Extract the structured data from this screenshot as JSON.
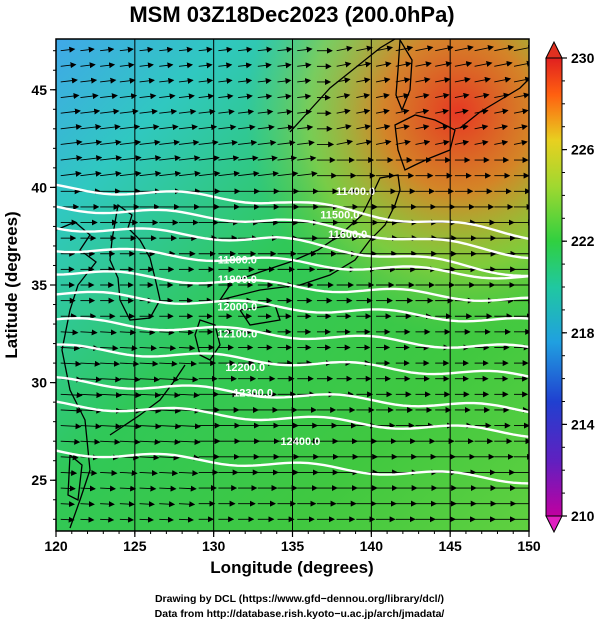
{
  "title": "MSM 03Z18Dec2023 (200.0hPa)",
  "x_axis": {
    "label": "Longitude (degrees)",
    "range": [
      120,
      150
    ],
    "ticks": [
      "120",
      "125",
      "130",
      "135",
      "140",
      "145",
      "150"
    ]
  },
  "y_axis": {
    "label": "Latitude  (degrees)",
    "range": [
      22.4,
      47.6
    ],
    "ticks": [
      "25",
      "30",
      "35",
      "40",
      "45"
    ]
  },
  "colorbar": {
    "range": [
      210,
      230
    ],
    "ticks": [
      "210",
      "214",
      "218",
      "222",
      "226",
      "230"
    ],
    "colors": [
      "#c000a0",
      "#2030c0",
      "#20a0e0",
      "#20c8a0",
      "#30d040",
      "#a0d830",
      "#e8d020",
      "#ff6010",
      "#e02020"
    ]
  },
  "contour_labels": [
    {
      "text": "11400.0",
      "lon": 139.0,
      "lat": 39.6
    },
    {
      "text": "11500.0",
      "lon": 138.0,
      "lat": 38.4
    },
    {
      "text": "11600.0",
      "lon": 138.5,
      "lat": 37.4
    },
    {
      "text": "11800.0",
      "lon": 131.5,
      "lat": 36.1
    },
    {
      "text": "11900.0",
      "lon": 131.5,
      "lat": 35.1
    },
    {
      "text": "12000.0",
      "lon": 131.5,
      "lat": 33.7
    },
    {
      "text": "12100.0",
      "lon": 131.5,
      "lat": 32.3
    },
    {
      "text": "12200.0",
      "lon": 132.0,
      "lat": 30.6
    },
    {
      "text": "12300.0",
      "lon": 132.5,
      "lat": 29.3
    },
    {
      "text": "12400.0",
      "lon": 135.5,
      "lat": 26.8
    }
  ],
  "credits": {
    "line1": "Drawing by DCL (https://www.gfd−dennou.org/library/dcl/)",
    "line2": "Data from http://database.rish.kyoto−u.ac.jp/arch/jmadata/"
  }
}
